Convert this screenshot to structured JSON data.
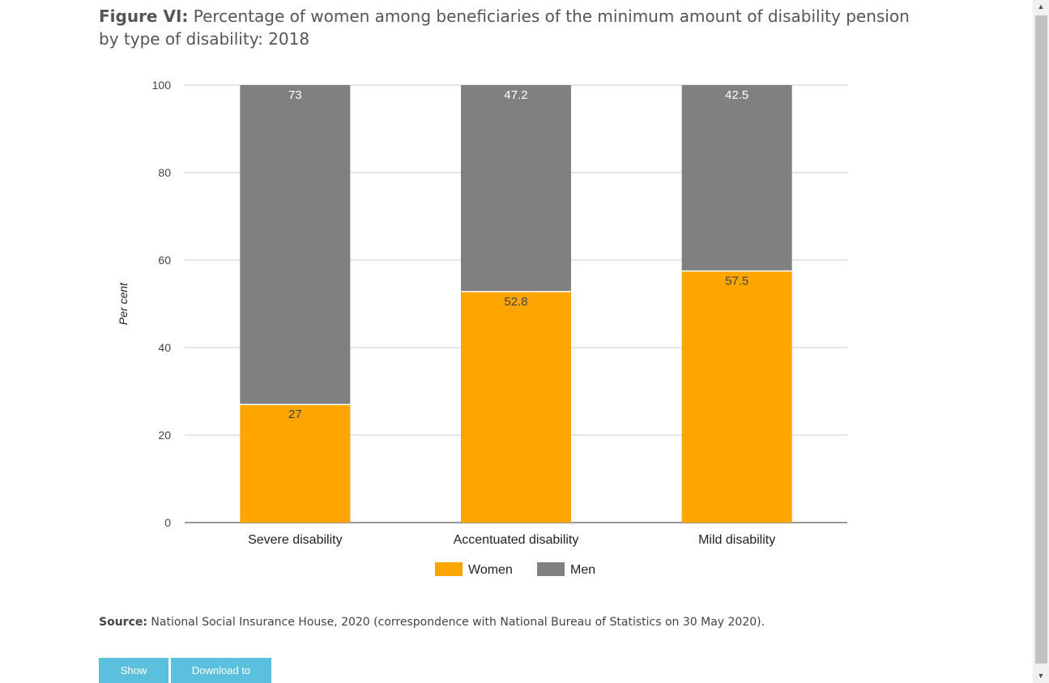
{
  "title": {
    "lead": "Figure VI:",
    "text": "Percentage of women among beneficiaries of the minimum amount of disability pension by type of disability: 2018"
  },
  "chart_data": {
    "type": "bar",
    "stacked": true,
    "categories": [
      "Severe disability",
      "Accentuated disability",
      "Mild disability"
    ],
    "series": [
      {
        "name": "Women",
        "values": [
          27,
          52.8,
          57.5
        ],
        "color": "#ffa500"
      },
      {
        "name": "Men",
        "values": [
          73,
          47.2,
          42.5
        ],
        "color": "#808080"
      }
    ],
    "ylabel": "Per cent",
    "ylim": [
      0,
      100
    ],
    "yticks": [
      0,
      20,
      40,
      60,
      80,
      100
    ],
    "grid": true,
    "legend": "bottom-center"
  },
  "source": {
    "lead": "Source:",
    "text": "National Social Insurance House, 2020 (correspondence with National Bureau of Statistics on 30 May 2020)."
  },
  "buttons": {
    "show_data": "Show Data",
    "download_csv": "Download to CSV"
  },
  "icons": {
    "scroll_up": "scroll-up-arrow-icon",
    "scroll_down": "scroll-down-arrow-icon"
  }
}
